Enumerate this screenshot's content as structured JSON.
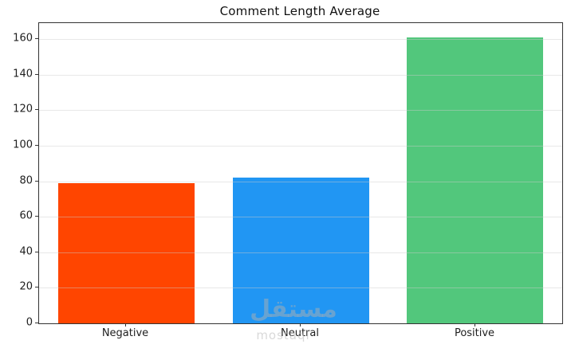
{
  "title": "Comment Length Average",
  "watermark": {
    "arabic": "مستقل",
    "latin": "mostaql"
  },
  "chart_data": {
    "type": "bar",
    "title": "Comment Length Average",
    "categories": [
      "Negative",
      "Neutral",
      "Positive"
    ],
    "values": [
      79,
      82,
      161
    ],
    "bar_colors": [
      "#FF4500",
      "#2196F3",
      "#52C77C"
    ],
    "xlabel": "",
    "ylabel": "",
    "ylim": [
      0,
      169
    ],
    "yticks": [
      0,
      20,
      40,
      60,
      80,
      100,
      120,
      140,
      160
    ],
    "grid": "horizontal",
    "grid_color": "#e7e7e7",
    "spine_color": "#333333",
    "background": "#ffffff",
    "legend": "none"
  }
}
